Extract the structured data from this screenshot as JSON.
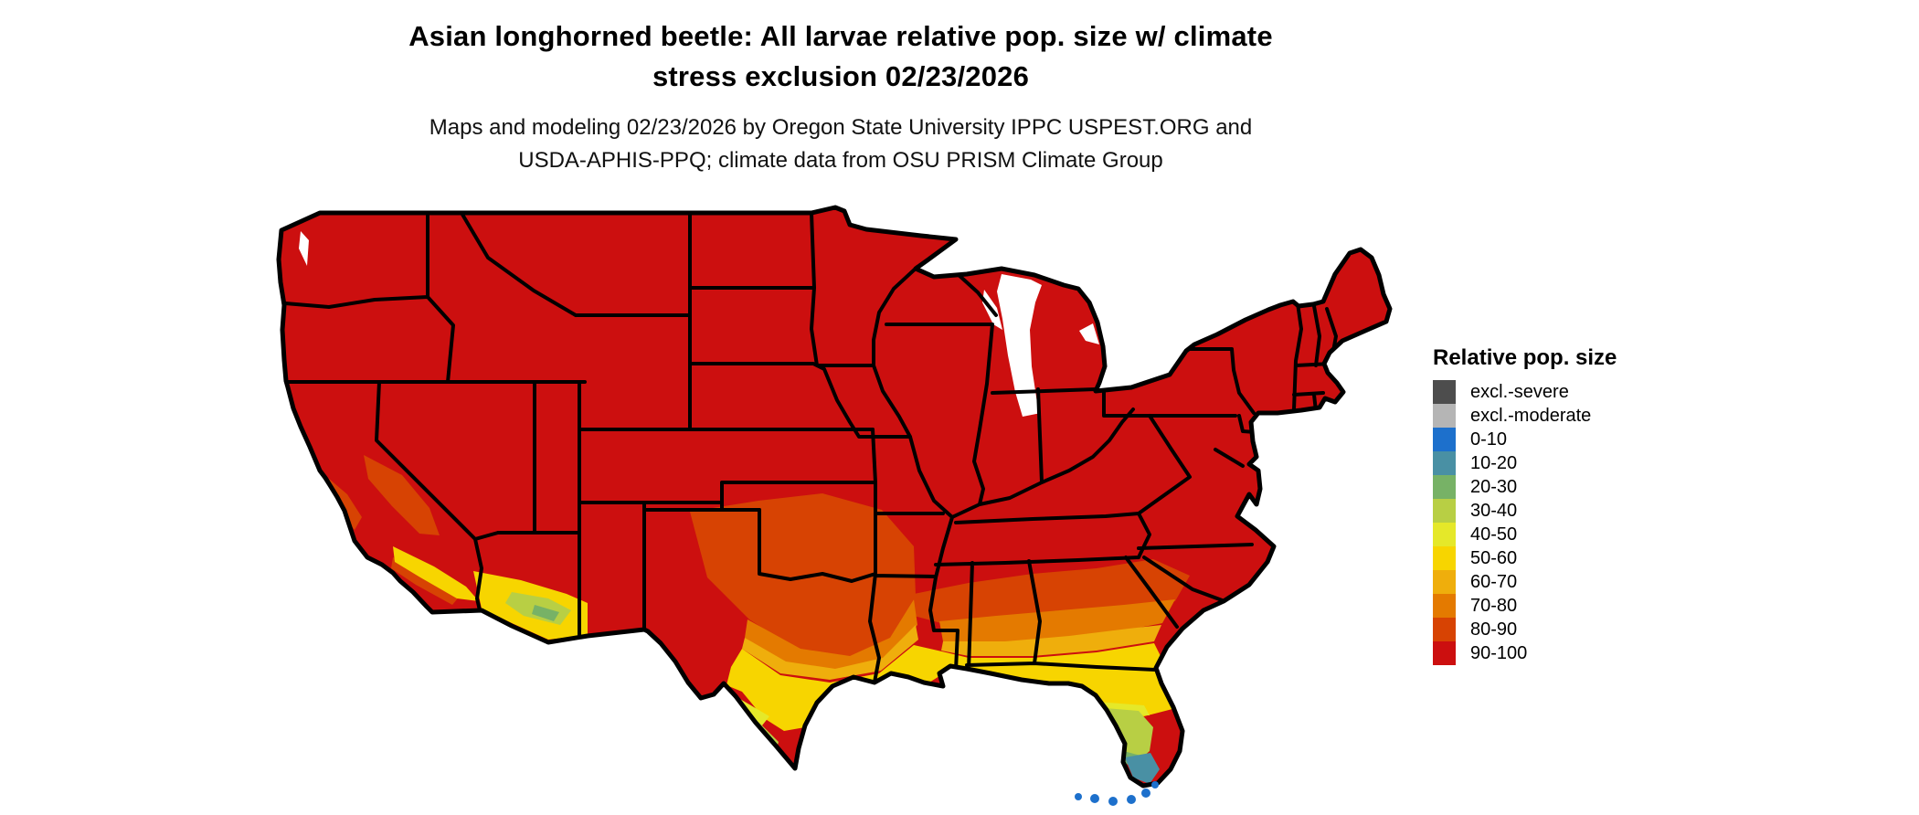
{
  "page": {
    "background_color": "#ffffff"
  },
  "header": {
    "title_line1": "Asian longhorned beetle: All larvae relative pop. size w/ climate",
    "title_line2": "stress exclusion 02/23/2026",
    "subtitle_line1": "Maps and modeling 02/23/2026 by Oregon State University IPPC USPEST.ORG and",
    "subtitle_line2": "USDA-APHIS-PPQ; climate data from OSU PRISM Climate Group"
  },
  "legend": {
    "title": "Relative pop. size",
    "items": [
      {
        "label": "excl.-severe",
        "color": "#4d4d4d"
      },
      {
        "label": "excl.-moderate",
        "color": "#b5b5b5"
      },
      {
        "label": "0-10",
        "color": "#1d70cc"
      },
      {
        "label": "10-20",
        "color": "#4990a4"
      },
      {
        "label": "20-30",
        "color": "#77b266"
      },
      {
        "label": "30-40",
        "color": "#b8cf44"
      },
      {
        "label": "40-50",
        "color": "#e5e829"
      },
      {
        "label": "50-60",
        "color": "#f7d500"
      },
      {
        "label": "60-70",
        "color": "#efae0c"
      },
      {
        "label": "70-80",
        "color": "#e47a00"
      },
      {
        "label": "80-90",
        "color": "#d74303"
      },
      {
        "label": "90-100",
        "color": "#cc0f0f"
      }
    ]
  },
  "map": {
    "region": "Contiguous United States",
    "dominant_class": "90-100",
    "outline_color": "#000000",
    "water_color": "#ffffff"
  }
}
